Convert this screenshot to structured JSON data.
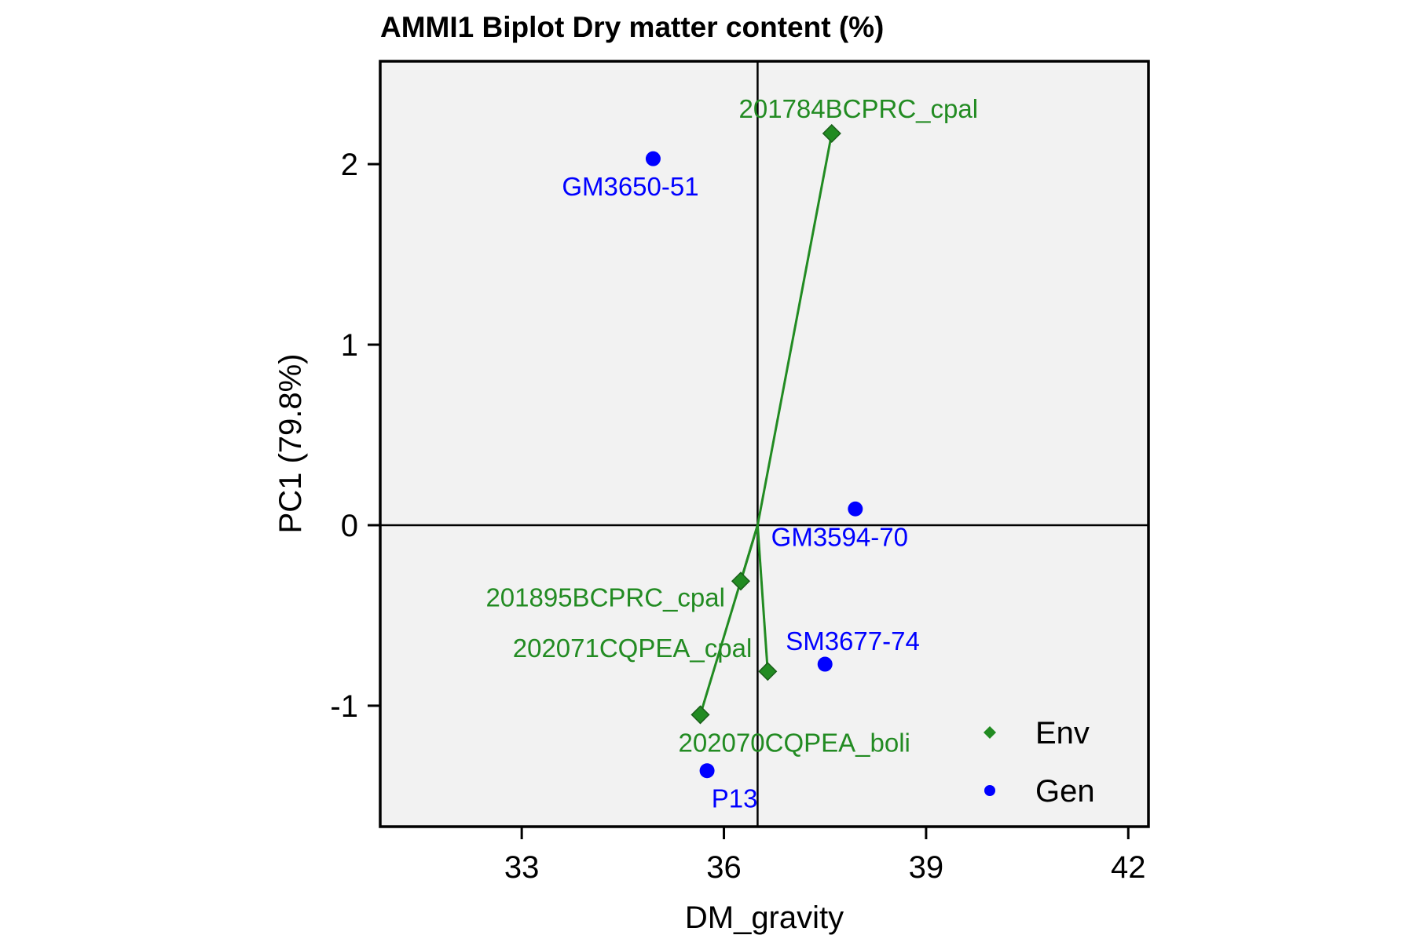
{
  "chart_data": {
    "type": "scatter",
    "title": "AMMI1 Biplot Dry matter content (%)",
    "xlabel": "DM_gravity",
    "ylabel": "PC1 (79.8%)",
    "xlim": [
      30.9,
      42.3
    ],
    "ylim": [
      -1.67,
      2.57
    ],
    "x_ticks": [
      33,
      36,
      39,
      42
    ],
    "y_ticks": [
      -1,
      0,
      1,
      2
    ],
    "x_tick_labels": [
      "33",
      "36",
      "39",
      "42"
    ],
    "y_tick_labels": [
      "-1",
      "0",
      "1",
      "2"
    ],
    "grand_mean": 36.5,
    "grid": false,
    "legend_position": "bottom-right",
    "series": [
      {
        "name": "Env",
        "marker": "diamond",
        "color": "#228B22",
        "rays_to_origin": true,
        "points": [
          {
            "label": "201784BCPRC_cpal",
            "x": 37.6,
            "y": 2.17
          },
          {
            "label": "201895BCPRC_cpal",
            "x": 36.25,
            "y": -0.31
          },
          {
            "label": "202071CQPEA_cpal",
            "x": 36.65,
            "y": -0.81
          },
          {
            "label": "202070CQPEA_boli",
            "x": 35.65,
            "y": -1.05
          }
        ]
      },
      {
        "name": "Gen",
        "marker": "circle",
        "color": "#0000FF",
        "points": [
          {
            "label": "GM3650-51",
            "x": 34.95,
            "y": 2.03
          },
          {
            "label": "GM3594-70",
            "x": 37.95,
            "y": 0.09
          },
          {
            "label": "SM3677-74",
            "x": 37.5,
            "y": -0.77
          },
          {
            "label": "P13",
            "x": 35.75,
            "y": -1.36
          }
        ]
      }
    ]
  }
}
